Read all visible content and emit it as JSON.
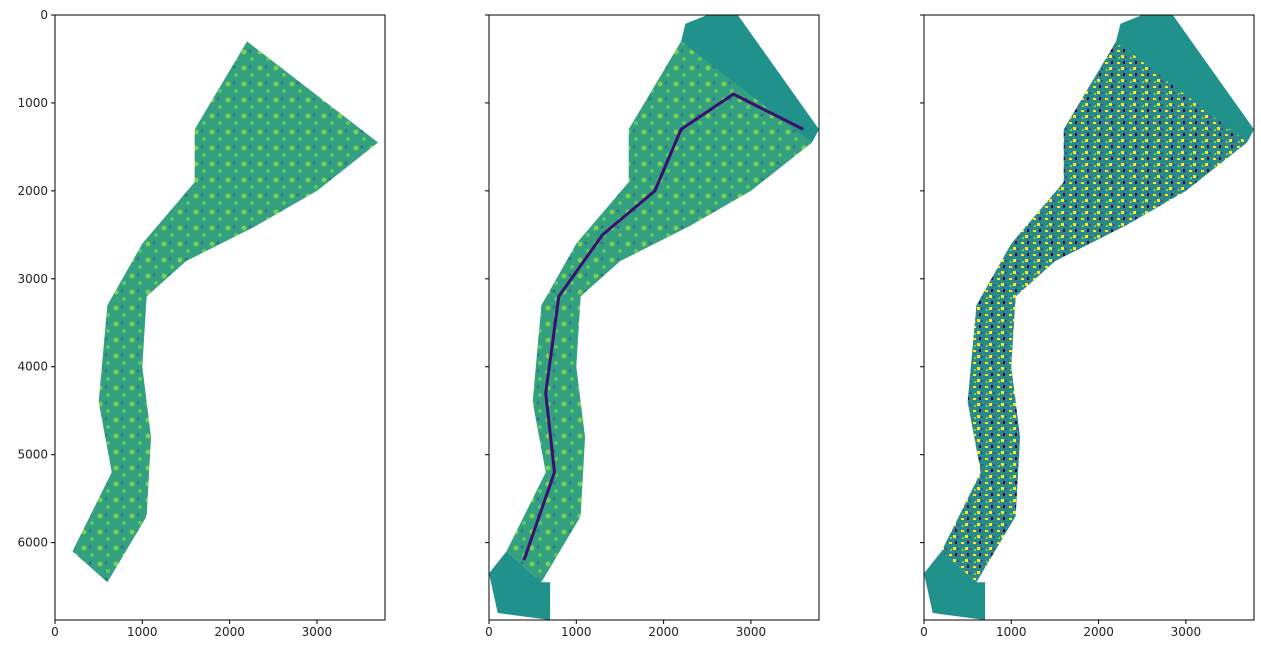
{
  "chart_data": [
    {
      "type": "image",
      "xlim": [
        0,
        3780
      ],
      "ylim": [
        6880,
        0
      ],
      "xticks": [
        0,
        1000,
        2000,
        3000
      ],
      "yticks": [
        0,
        1000,
        2000,
        3000,
        4000,
        5000,
        6000
      ],
      "colormap": "viridis"
    },
    {
      "type": "image",
      "xlim": [
        0,
        3780
      ],
      "ylim": [
        6880,
        0
      ],
      "xticks": [
        0,
        1000,
        2000,
        3000
      ],
      "colormap": "viridis"
    },
    {
      "type": "image",
      "xlim": [
        0,
        3780
      ],
      "ylim": [
        6880,
        0
      ],
      "xticks": [
        0,
        1000,
        2000,
        3000
      ],
      "colormap": "viridis"
    }
  ]
}
